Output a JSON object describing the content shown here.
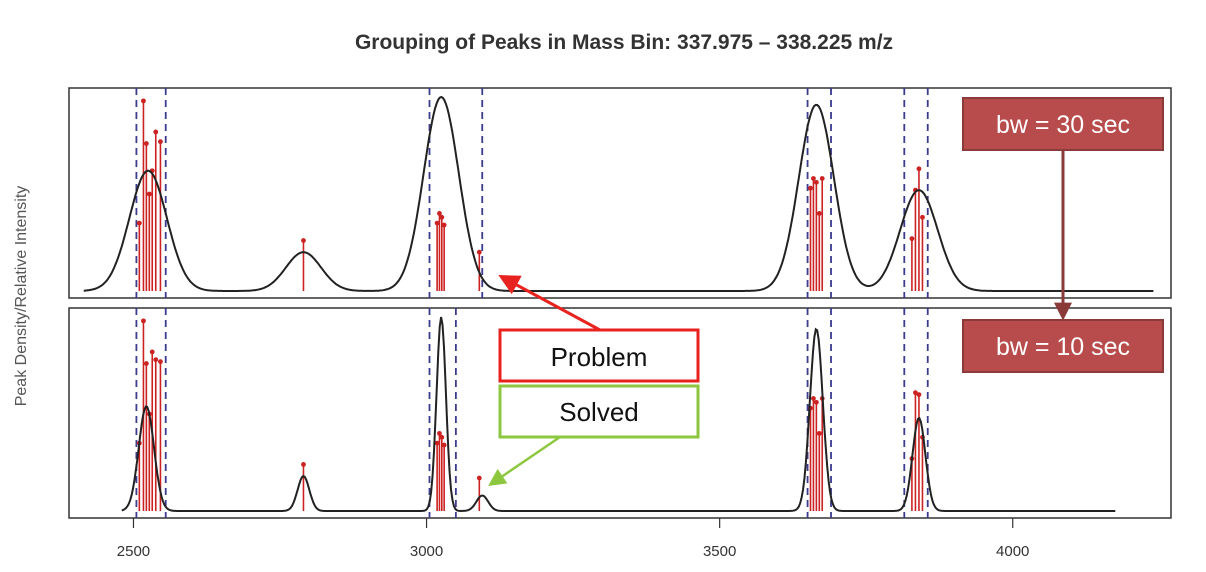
{
  "chart_data": {
    "type": "line",
    "title": "Grouping of Peaks in Mass Bin: 337.975 – 338.225 m/z",
    "ylabel": "Peak Density/Relative Intensity",
    "xlabel": "",
    "xlim": [
      2390,
      4270
    ],
    "x_ticks": [
      2500,
      3000,
      3500,
      4000
    ],
    "panels": [
      {
        "name": "top",
        "bandwidth_label": "bw = 30 sec",
        "group_boundaries": [
          2505,
          2555,
          3005,
          3095,
          3650,
          3690,
          3815,
          3855
        ],
        "density_peaks": [
          {
            "center": 2525,
            "height": 0.62
          },
          {
            "center": 2790,
            "height": 0.2
          },
          {
            "center": 3025,
            "height": 1.0
          },
          {
            "center": 3665,
            "height": 0.96
          },
          {
            "center": 3840,
            "height": 0.52
          }
        ],
        "peak_sticks": [
          {
            "x": 2510,
            "y": 0.35
          },
          {
            "x": 2517,
            "y": 0.98
          },
          {
            "x": 2522,
            "y": 0.76
          },
          {
            "x": 2527,
            "y": 0.5
          },
          {
            "x": 2532,
            "y": 0.62
          },
          {
            "x": 2538,
            "y": 0.82
          },
          {
            "x": 2546,
            "y": 0.77
          },
          {
            "x": 2790,
            "y": 0.26
          },
          {
            "x": 3018,
            "y": 0.35
          },
          {
            "x": 3022,
            "y": 0.4
          },
          {
            "x": 3026,
            "y": 0.38
          },
          {
            "x": 3030,
            "y": 0.34
          },
          {
            "x": 3090,
            "y": 0.2
          },
          {
            "x": 3655,
            "y": 0.53
          },
          {
            "x": 3660,
            "y": 0.58
          },
          {
            "x": 3665,
            "y": 0.56
          },
          {
            "x": 3670,
            "y": 0.4
          },
          {
            "x": 3675,
            "y": 0.58
          },
          {
            "x": 3828,
            "y": 0.27
          },
          {
            "x": 3834,
            "y": 0.52
          },
          {
            "x": 3840,
            "y": 0.63
          },
          {
            "x": 3846,
            "y": 0.38
          }
        ]
      },
      {
        "name": "bottom",
        "bandwidth_label": "bw = 10 sec",
        "group_boundaries": [
          2505,
          2555,
          3005,
          3050,
          3650,
          3690,
          3815,
          3855
        ],
        "density_peaks": [
          {
            "center": 2522,
            "height": 0.54
          },
          {
            "center": 2790,
            "height": 0.18
          },
          {
            "center": 3025,
            "height": 1.0
          },
          {
            "center": 3095,
            "height": 0.08
          },
          {
            "center": 3665,
            "height": 0.94
          },
          {
            "center": 3840,
            "height": 0.48
          }
        ],
        "peak_sticks": [
          {
            "x": 2510,
            "y": 0.35
          },
          {
            "x": 2517,
            "y": 0.98
          },
          {
            "x": 2522,
            "y": 0.76
          },
          {
            "x": 2527,
            "y": 0.5
          },
          {
            "x": 2532,
            "y": 0.82
          },
          {
            "x": 2538,
            "y": 0.78
          },
          {
            "x": 2546,
            "y": 0.77
          },
          {
            "x": 2790,
            "y": 0.24
          },
          {
            "x": 3018,
            "y": 0.35
          },
          {
            "x": 3022,
            "y": 0.4
          },
          {
            "x": 3026,
            "y": 0.38
          },
          {
            "x": 3030,
            "y": 0.34
          },
          {
            "x": 3090,
            "y": 0.17
          },
          {
            "x": 3655,
            "y": 0.53
          },
          {
            "x": 3660,
            "y": 0.58
          },
          {
            "x": 3665,
            "y": 0.56
          },
          {
            "x": 3670,
            "y": 0.4
          },
          {
            "x": 3675,
            "y": 0.58
          },
          {
            "x": 3828,
            "y": 0.27
          },
          {
            "x": 3834,
            "y": 0.61
          },
          {
            "x": 3840,
            "y": 0.6
          },
          {
            "x": 3846,
            "y": 0.38
          }
        ]
      }
    ],
    "annotations": {
      "problem": {
        "label": "Problem",
        "color": "#e8231f"
      },
      "solved": {
        "label": "Solved",
        "color": "#8dc63f"
      },
      "bandwidth_box_color": "#b84c4c",
      "bandwidth_arrow_color": "#8b3a3a"
    },
    "colors": {
      "density_curve": "#222222",
      "peak_stick": "#cc2222",
      "group_boundary": "#3b3b8f"
    }
  }
}
